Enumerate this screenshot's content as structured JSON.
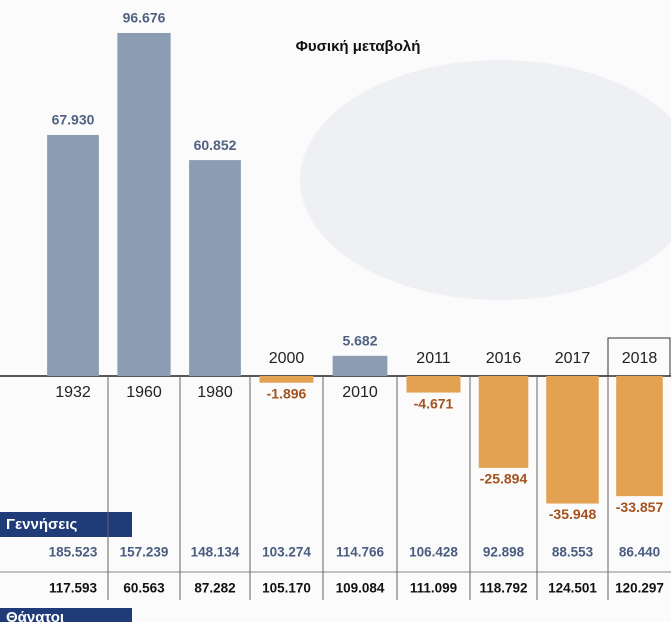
{
  "chart_data": {
    "type": "bar",
    "title": "Φυσική μεταβολή",
    "categories": [
      "1932",
      "1960",
      "1980",
      "2000",
      "2010",
      "2011",
      "2016",
      "2017",
      "2018"
    ],
    "values": [
      67930,
      96676,
      60852,
      -1896,
      5682,
      -4671,
      -25894,
      -35948,
      -33857
    ],
    "value_labels": [
      "67.930",
      "96.676",
      "60.852",
      "-1.896",
      "5.682",
      "-4.671",
      "-25.894",
      "-35.948",
      "-33.857"
    ],
    "positive_color": "#8c9db3",
    "negative_color": "#e2a252",
    "births": {
      "label": "Γεννήσεις",
      "values": [
        "185.523",
        "157.239",
        "148.134",
        "103.274",
        "114.766",
        "106.428",
        "92.898",
        "88.553",
        "86.440"
      ]
    },
    "deaths": {
      "label": "Θάνατοι",
      "values": [
        "117.593",
        "60.563",
        "87.282",
        "105.170",
        "109.084",
        "111.099",
        "118.792",
        "124.501",
        "120.297"
      ]
    }
  }
}
